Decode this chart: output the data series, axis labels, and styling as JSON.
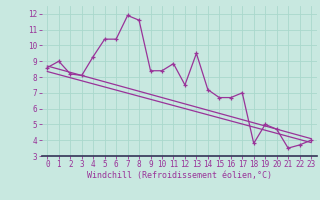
{
  "xlabel": "Windchill (Refroidissement éolien,°C)",
  "bg_color": "#c8e8e0",
  "line_color": "#993399",
  "grid_color": "#aad8cc",
  "axis_bg": "#c8e8e0",
  "xlim": [
    -0.5,
    23.5
  ],
  "ylim": [
    3,
    12.5
  ],
  "xticks": [
    0,
    1,
    2,
    3,
    4,
    5,
    6,
    7,
    8,
    9,
    10,
    11,
    12,
    13,
    14,
    15,
    16,
    17,
    18,
    19,
    20,
    21,
    22,
    23
  ],
  "yticks": [
    3,
    4,
    5,
    6,
    7,
    8,
    9,
    10,
    11,
    12
  ],
  "line1_x": [
    0,
    1,
    2,
    3,
    4,
    5,
    6,
    7,
    8,
    9,
    10,
    11,
    12,
    13,
    14,
    15,
    16,
    17,
    18,
    19,
    20,
    21,
    22,
    23
  ],
  "line1_y": [
    8.6,
    9.0,
    8.2,
    8.1,
    9.3,
    10.4,
    10.4,
    11.9,
    11.6,
    8.4,
    8.4,
    8.85,
    7.5,
    9.5,
    7.2,
    6.7,
    6.7,
    7.0,
    3.8,
    5.0,
    4.7,
    3.5,
    3.7,
    4.0
  ],
  "line2_x": [
    0,
    23
  ],
  "line2_y": [
    8.7,
    4.1
  ],
  "line3_x": [
    0,
    23
  ],
  "line3_y": [
    8.35,
    3.85
  ],
  "xlabel_fontsize": 6,
  "tick_fontsize": 5.5,
  "linewidth": 0.9,
  "marker_size": 3.5
}
